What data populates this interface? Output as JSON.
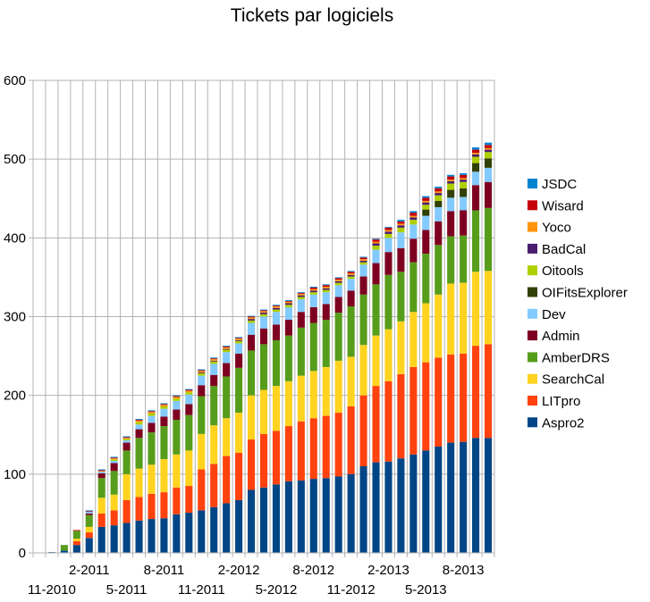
{
  "chart_data": {
    "type": "bar",
    "stacked": true,
    "title": "Tickets par logiciels",
    "xlabel": "",
    "ylabel": "",
    "ylim": [
      0,
      600
    ],
    "yticks": [
      0,
      100,
      200,
      300,
      400,
      500,
      600
    ],
    "grid": true,
    "legend_position": "right",
    "months": [
      "10-2010",
      "11-2010",
      "12-2010",
      "1-2011",
      "2-2011",
      "3-2011",
      "4-2011",
      "5-2011",
      "6-2011",
      "7-2011",
      "8-2011",
      "9-2011",
      "10-2011",
      "11-2011",
      "12-2011",
      "1-2012",
      "2-2012",
      "3-2012",
      "4-2012",
      "5-2012",
      "6-2012",
      "7-2012",
      "8-2012",
      "9-2012",
      "10-2012",
      "11-2012",
      "12-2012",
      "1-2013",
      "2-2013",
      "3-2013",
      "4-2013",
      "5-2013",
      "6-2013",
      "7-2013",
      "8-2013",
      "9-2013",
      "10-2013"
    ],
    "x_tick_labels": [
      {
        "index": 1,
        "label": "11-2010",
        "row": 2
      },
      {
        "index": 4,
        "label": "2-2011",
        "row": 1
      },
      {
        "index": 7,
        "label": "5-2011",
        "row": 2
      },
      {
        "index": 10,
        "label": "8-2011",
        "row": 1
      },
      {
        "index": 13,
        "label": "11-2011",
        "row": 2
      },
      {
        "index": 16,
        "label": "2-2012",
        "row": 1
      },
      {
        "index": 19,
        "label": "5-2012",
        "row": 2
      },
      {
        "index": 22,
        "label": "8-2012",
        "row": 1
      },
      {
        "index": 25,
        "label": "11-2012",
        "row": 2
      },
      {
        "index": 28,
        "label": "2-2013",
        "row": 1
      },
      {
        "index": 31,
        "label": "5-2013",
        "row": 2
      },
      {
        "index": 34,
        "label": "8-2013",
        "row": 1
      }
    ],
    "series": [
      {
        "name": "Aspro2",
        "color": "#004586",
        "values": [
          0,
          1,
          3,
          10,
          19,
          33,
          35,
          38,
          41,
          43,
          44,
          49,
          51,
          54,
          58,
          63,
          67,
          80,
          83,
          87,
          91,
          92,
          94,
          95,
          97,
          100,
          110,
          115,
          116,
          120,
          125,
          130,
          135,
          140,
          141,
          146,
          146
        ]
      },
      {
        "name": "LITpro",
        "color": "#ff420e",
        "values": [
          0,
          0,
          0,
          5,
          7,
          17,
          19,
          29,
          30,
          32,
          33,
          34,
          34,
          52,
          55,
          60,
          60,
          64,
          68,
          68,
          70,
          75,
          77,
          79,
          81,
          86,
          90,
          97,
          102,
          107,
          111,
          112,
          113,
          112,
          112,
          117,
          119
        ]
      },
      {
        "name": "SearchCal",
        "color": "#ffd320",
        "values": [
          0,
          0,
          0,
          3,
          7,
          20,
          20,
          33,
          36,
          37,
          42,
          42,
          45,
          45,
          49,
          48,
          51,
          56,
          56,
          57,
          57,
          58,
          60,
          62,
          66,
          63,
          64,
          64,
          66,
          67,
          70,
          75,
          80,
          90,
          90,
          94,
          93
        ]
      },
      {
        "name": "AmberDRS",
        "color": "#579d1c",
        "values": [
          0,
          0,
          7,
          10,
          15,
          25,
          30,
          30,
          39,
          41,
          42,
          44,
          45,
          48,
          50,
          53,
          57,
          57,
          58,
          58,
          58,
          61,
          61,
          60,
          61,
          64,
          64,
          65,
          69,
          63,
          63,
          63,
          63,
          60,
          60,
          78,
          80
        ]
      },
      {
        "name": "Admin",
        "color": "#7e0021",
        "values": [
          0,
          0,
          0,
          0,
          2,
          6,
          10,
          10,
          11,
          12,
          12,
          13,
          14,
          14,
          14,
          17,
          18,
          20,
          20,
          20,
          20,
          20,
          20,
          20,
          20,
          20,
          23,
          27,
          29,
          30,
          30,
          30,
          30,
          32,
          32,
          32,
          33
        ]
      },
      {
        "name": "Dev",
        "color": "#83caff",
        "values": [
          0,
          0,
          0,
          0,
          2,
          2,
          3,
          3,
          6,
          9,
          10,
          11,
          12,
          12,
          14,
          14,
          13,
          15,
          15,
          16,
          16,
          16,
          16,
          15,
          15,
          15,
          15,
          17,
          18,
          20,
          18,
          18,
          18,
          17,
          17,
          17,
          18
        ]
      },
      {
        "name": "OIFitsExplorer",
        "color": "#314004",
        "values": [
          0,
          0,
          0,
          0,
          0,
          0,
          0,
          0,
          0,
          0,
          0,
          0,
          0,
          0,
          0,
          0,
          0,
          0,
          0,
          0,
          0,
          0,
          0,
          0,
          0,
          0,
          0,
          0,
          0,
          0,
          0,
          8,
          8,
          10,
          11,
          11,
          12
        ]
      },
      {
        "name": "Oitools",
        "color": "#aecf00",
        "values": [
          0,
          0,
          0,
          0,
          0,
          0,
          2,
          2,
          3,
          3,
          3,
          3,
          3,
          3,
          3,
          3,
          3,
          3,
          3,
          3,
          3,
          3,
          3,
          3,
          3,
          3,
          3,
          5,
          5,
          6,
          6,
          6,
          7,
          8,
          8,
          8,
          8
        ]
      },
      {
        "name": "BadCal",
        "color": "#4b1f6f",
        "values": [
          0,
          0,
          0,
          0,
          0,
          0,
          0,
          0,
          0,
          0,
          0,
          0,
          0,
          1,
          1,
          1,
          1,
          2,
          2,
          2,
          2,
          2,
          2,
          2,
          2,
          2,
          2,
          3,
          3,
          3,
          3,
          3,
          3,
          3,
          3,
          3,
          3
        ]
      },
      {
        "name": "Yoco",
        "color": "#ff950e",
        "values": [
          0,
          0,
          0,
          0,
          0,
          1,
          1,
          1,
          2,
          2,
          2,
          2,
          2,
          2,
          2,
          2,
          2,
          2,
          2,
          2,
          2,
          2,
          2,
          2,
          2,
          2,
          2,
          2,
          2,
          2,
          2,
          2,
          2,
          2,
          2,
          2,
          2
        ]
      },
      {
        "name": "Wisard",
        "color": "#c5000b",
        "values": [
          0,
          0,
          0,
          1,
          1,
          1,
          1,
          1,
          1,
          1,
          1,
          1,
          1,
          1,
          1,
          1,
          1,
          1,
          1,
          1,
          1,
          1,
          2,
          2,
          2,
          2,
          2,
          3,
          3,
          3,
          4,
          4,
          4,
          4,
          4,
          4,
          4
        ]
      },
      {
        "name": "JSDC",
        "color": "#0084d1",
        "values": [
          0,
          0,
          0,
          0,
          1,
          1,
          1,
          1,
          1,
          1,
          1,
          1,
          1,
          1,
          1,
          1,
          1,
          1,
          1,
          1,
          1,
          1,
          1,
          1,
          1,
          1,
          1,
          1,
          1,
          2,
          2,
          2,
          2,
          2,
          2,
          3,
          3
        ]
      }
    ]
  }
}
